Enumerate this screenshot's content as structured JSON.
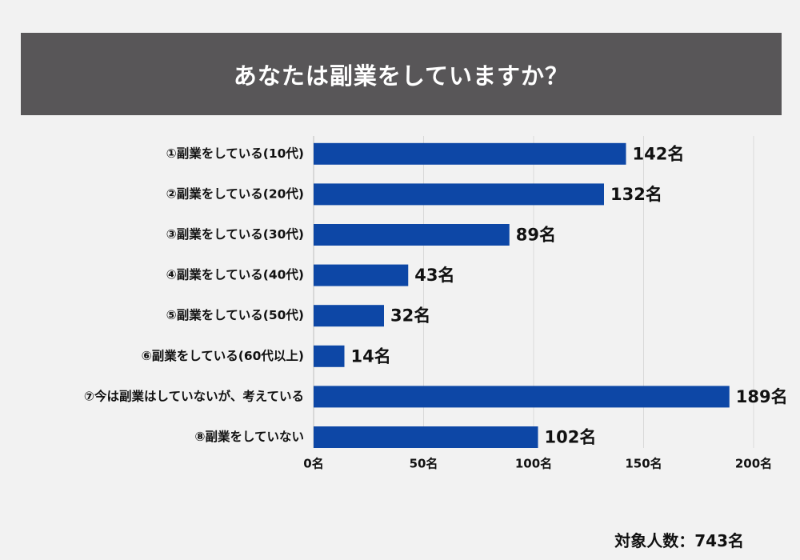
{
  "chart_data": {
    "type": "bar",
    "orientation": "horizontal",
    "title": "あなたは副業をしていますか？",
    "categories": [
      "①副業をしている(10代)",
      "②副業をしている(20代)",
      "③副業をしている(30代)",
      "④副業をしている(40代)",
      "⑤副業をしている(50代)",
      "⑥副業をしている(60代以上)",
      "⑦今は副業はしていないが、考えている",
      "⑧副業をしていない"
    ],
    "values": [
      142,
      132,
      89,
      43,
      32,
      14,
      189,
      102
    ],
    "value_labels": [
      "142名",
      "132名",
      "89名",
      "43名",
      "32名",
      "14名",
      "189名",
      "102名"
    ],
    "xlim": [
      0,
      200
    ],
    "x_ticks": [
      0,
      50,
      100,
      150,
      200
    ],
    "x_tick_labels": [
      "0名",
      "50名",
      "100名",
      "150名",
      "200名"
    ],
    "grid": true,
    "bar_color": "#0d47a6",
    "grid_color": "#d9d9d9",
    "title_bg_color": "#585658"
  },
  "footer": {
    "total": "対象人数：743名"
  }
}
